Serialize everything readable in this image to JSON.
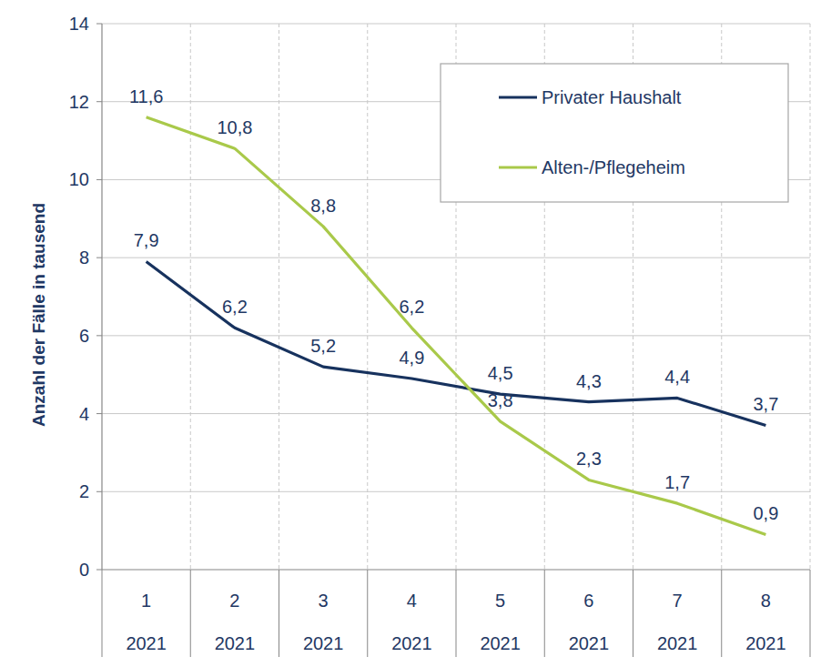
{
  "chart_data": {
    "type": "line",
    "y_label": "Anzahl der Fälle in tausend",
    "categories": [
      [
        "1",
        "2021"
      ],
      [
        "2",
        "2021"
      ],
      [
        "3",
        "2021"
      ],
      [
        "4",
        "2021"
      ],
      [
        "5",
        "2021"
      ],
      [
        "6",
        "2021"
      ],
      [
        "7",
        "2021"
      ],
      [
        "8",
        "2021"
      ]
    ],
    "series": [
      {
        "name": "Privater Haushalt",
        "color": "#17325e",
        "values": [
          7.9,
          6.2,
          5.2,
          4.9,
          4.5,
          4.3,
          4.4,
          3.7
        ],
        "value_labels": [
          "7,9",
          "6,2",
          "5,2",
          "4,9",
          "4,5",
          "4,3",
          "4,4",
          "3,7"
        ]
      },
      {
        "name": "Alten-/Pflegeheim",
        "color": "#a9c94a",
        "values": [
          11.6,
          10.8,
          8.8,
          6.2,
          3.8,
          2.3,
          1.7,
          0.9
        ],
        "value_labels": [
          "11,6",
          "10,8",
          "8,8",
          "6,2",
          "3,8",
          "2,3",
          "1,7",
          "0,9"
        ]
      }
    ],
    "ylim": [
      0,
      14
    ],
    "yticks": [
      0,
      2,
      4,
      6,
      8,
      10,
      12,
      14
    ],
    "grid": true,
    "legend": "top-right",
    "data_labels": true
  }
}
